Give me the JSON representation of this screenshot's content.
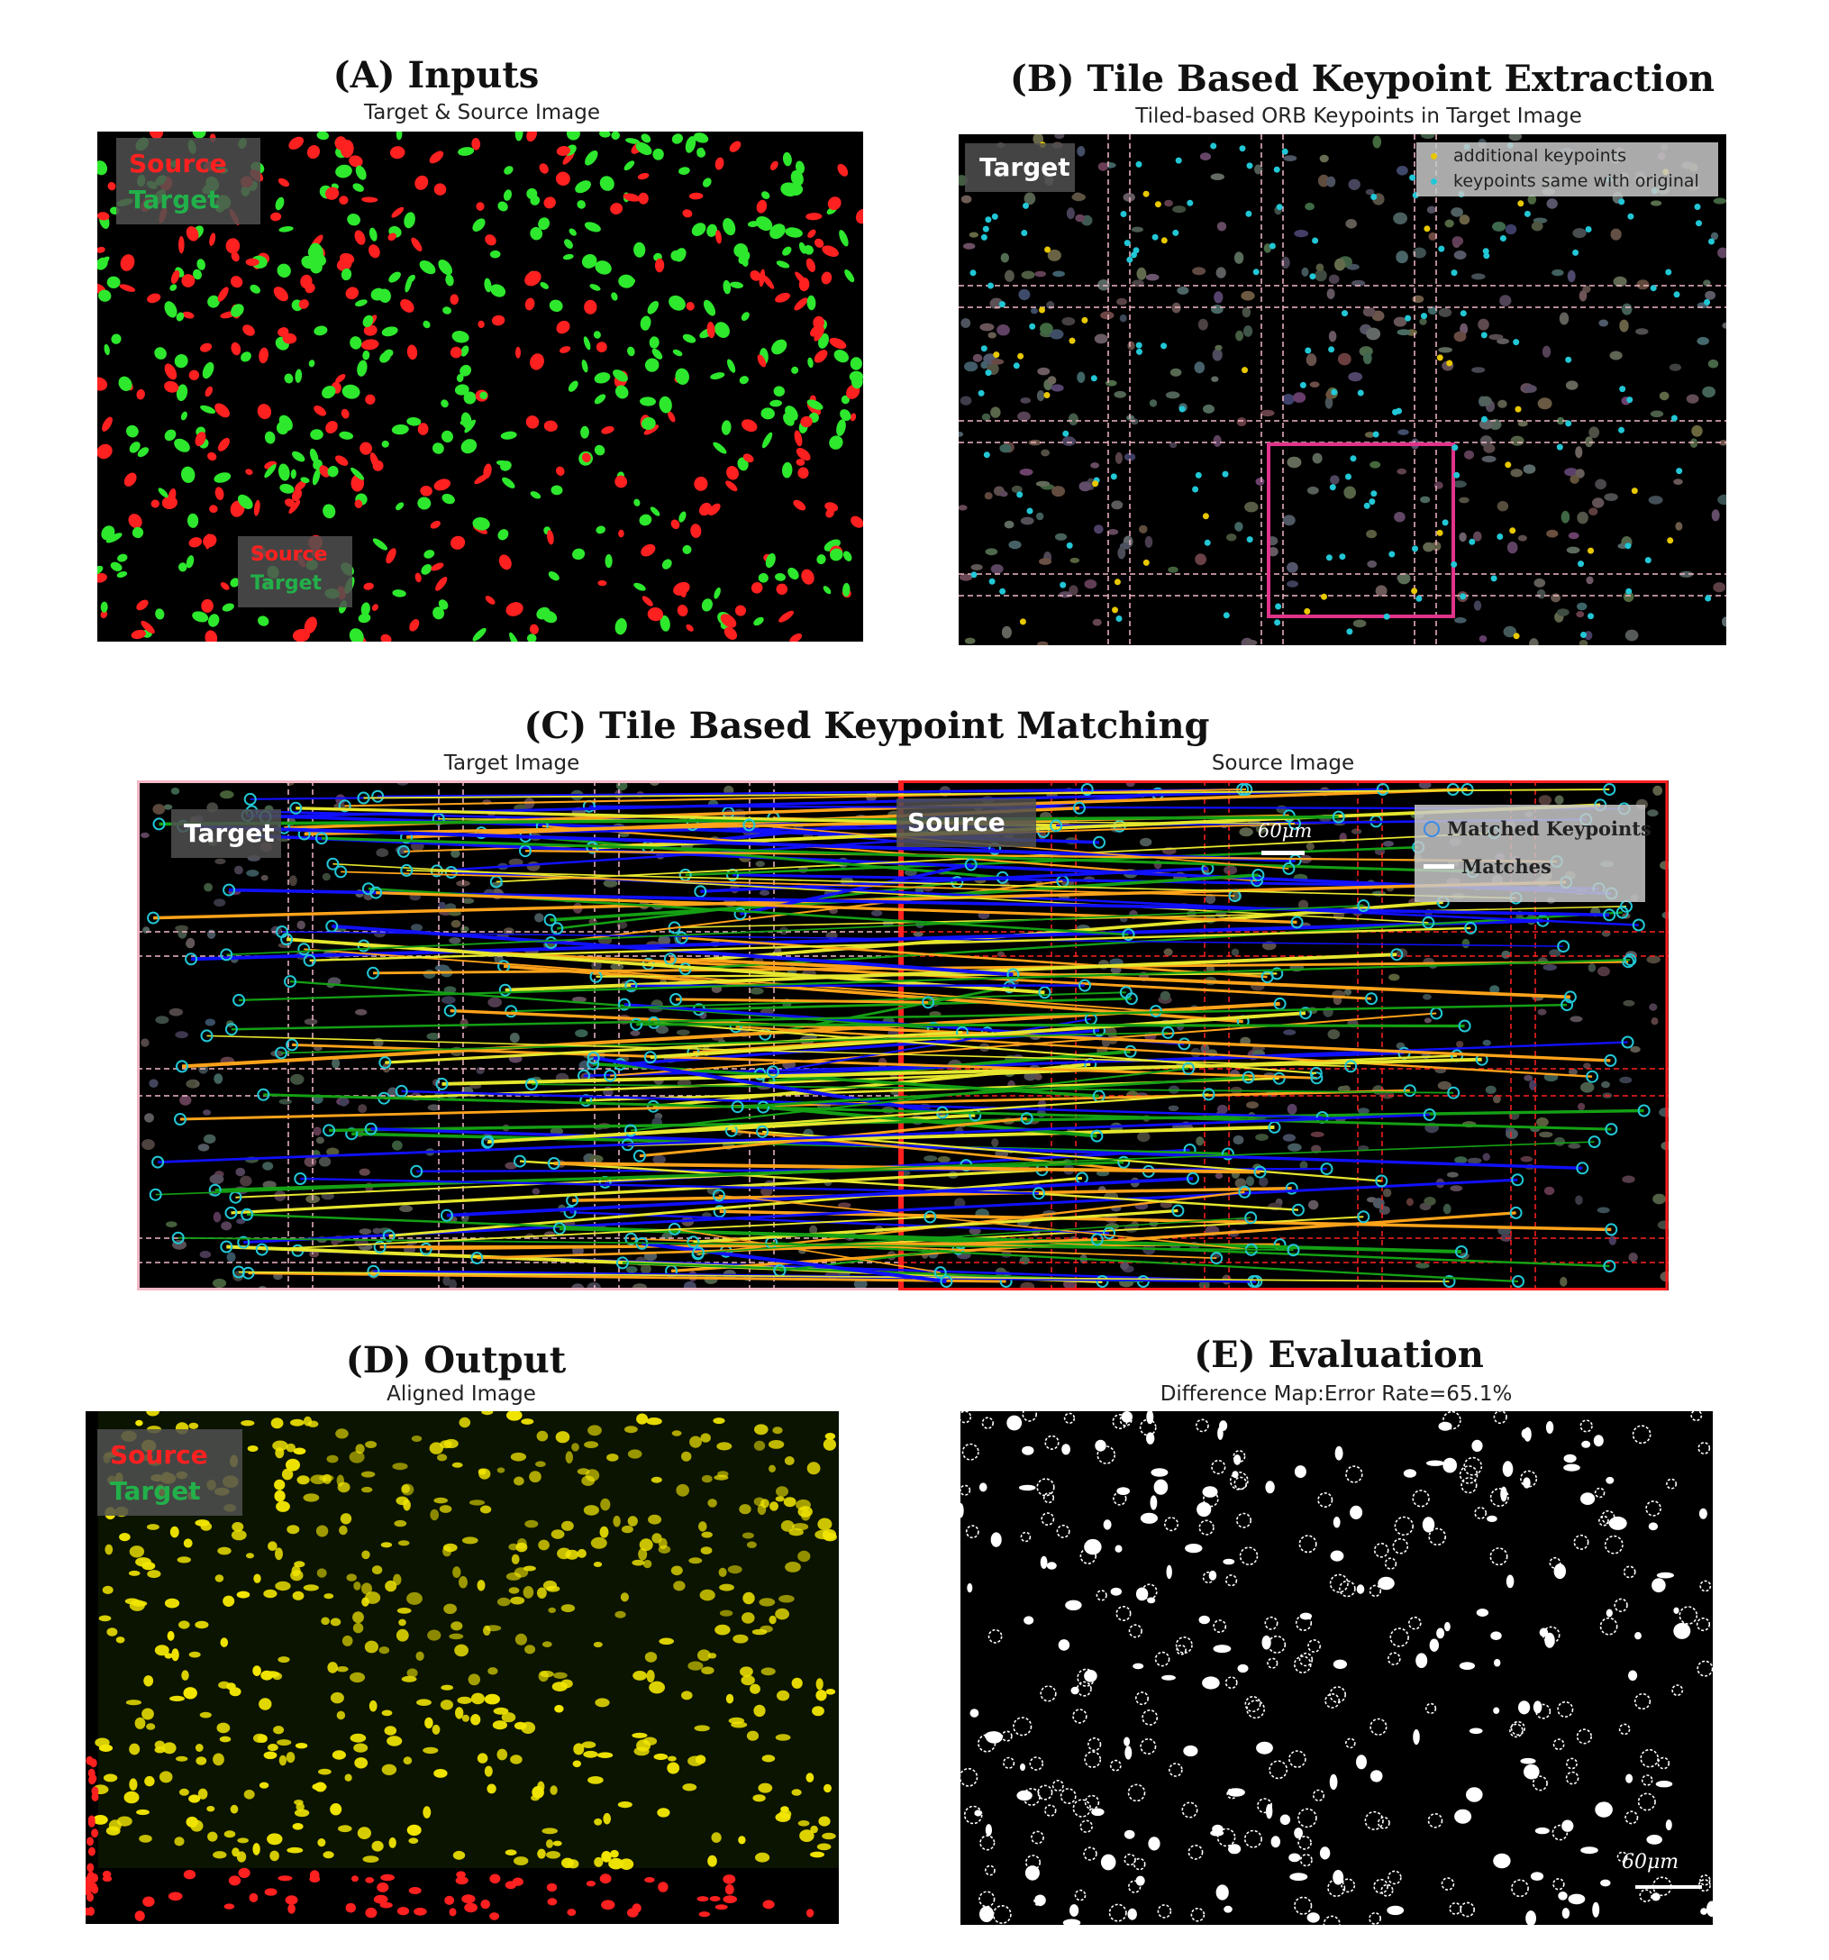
{
  "panels": {
    "a": {
      "heading": "(A) Inputs",
      "subtitle": "Target & Source Image",
      "legend_top": {
        "source": "Source",
        "target": "Target"
      },
      "legend_bottom": {
        "source": "Source",
        "target": "Target"
      }
    },
    "b": {
      "heading": "(B) Tile Based Keypoint Extraction",
      "subtitle": "Tiled-based ORB Keypoints in Target Image",
      "image_label": "Target",
      "legend": {
        "additional": "additional keypoints",
        "same": "keypoints same with original"
      }
    },
    "c": {
      "heading": "(C) Tile Based Keypoint Matching",
      "subtitle_left": "Target Image",
      "subtitle_right": "Source Image",
      "label_left": "Target",
      "label_right": "Source",
      "scale": "60μm",
      "legend": {
        "keypoints": "Matched Keypoints",
        "matches": "Matches"
      }
    },
    "d": {
      "heading": "(D) Output",
      "subtitle": "Aligned Image",
      "legend": {
        "source": "Source",
        "target": "Target"
      }
    },
    "e": {
      "heading": "(E) Evaluation",
      "subtitle": "Difference Map:Error Rate=65.1%",
      "scale": "60μm"
    }
  },
  "colors": {
    "source_red": "#ff2020",
    "target_green": "#2ee82e",
    "aligned_yellow": "#f2e600",
    "keypoint_cyan": "#22c7d6",
    "additional_yellow": "#e8c800",
    "tile_pink": "#f3b8c6",
    "highlight_magenta": "#e0338a",
    "match_blue": "#1010ff",
    "match_orange": "#ffa31a",
    "match_yellow": "#e6e62e",
    "match_green": "#14a014"
  }
}
